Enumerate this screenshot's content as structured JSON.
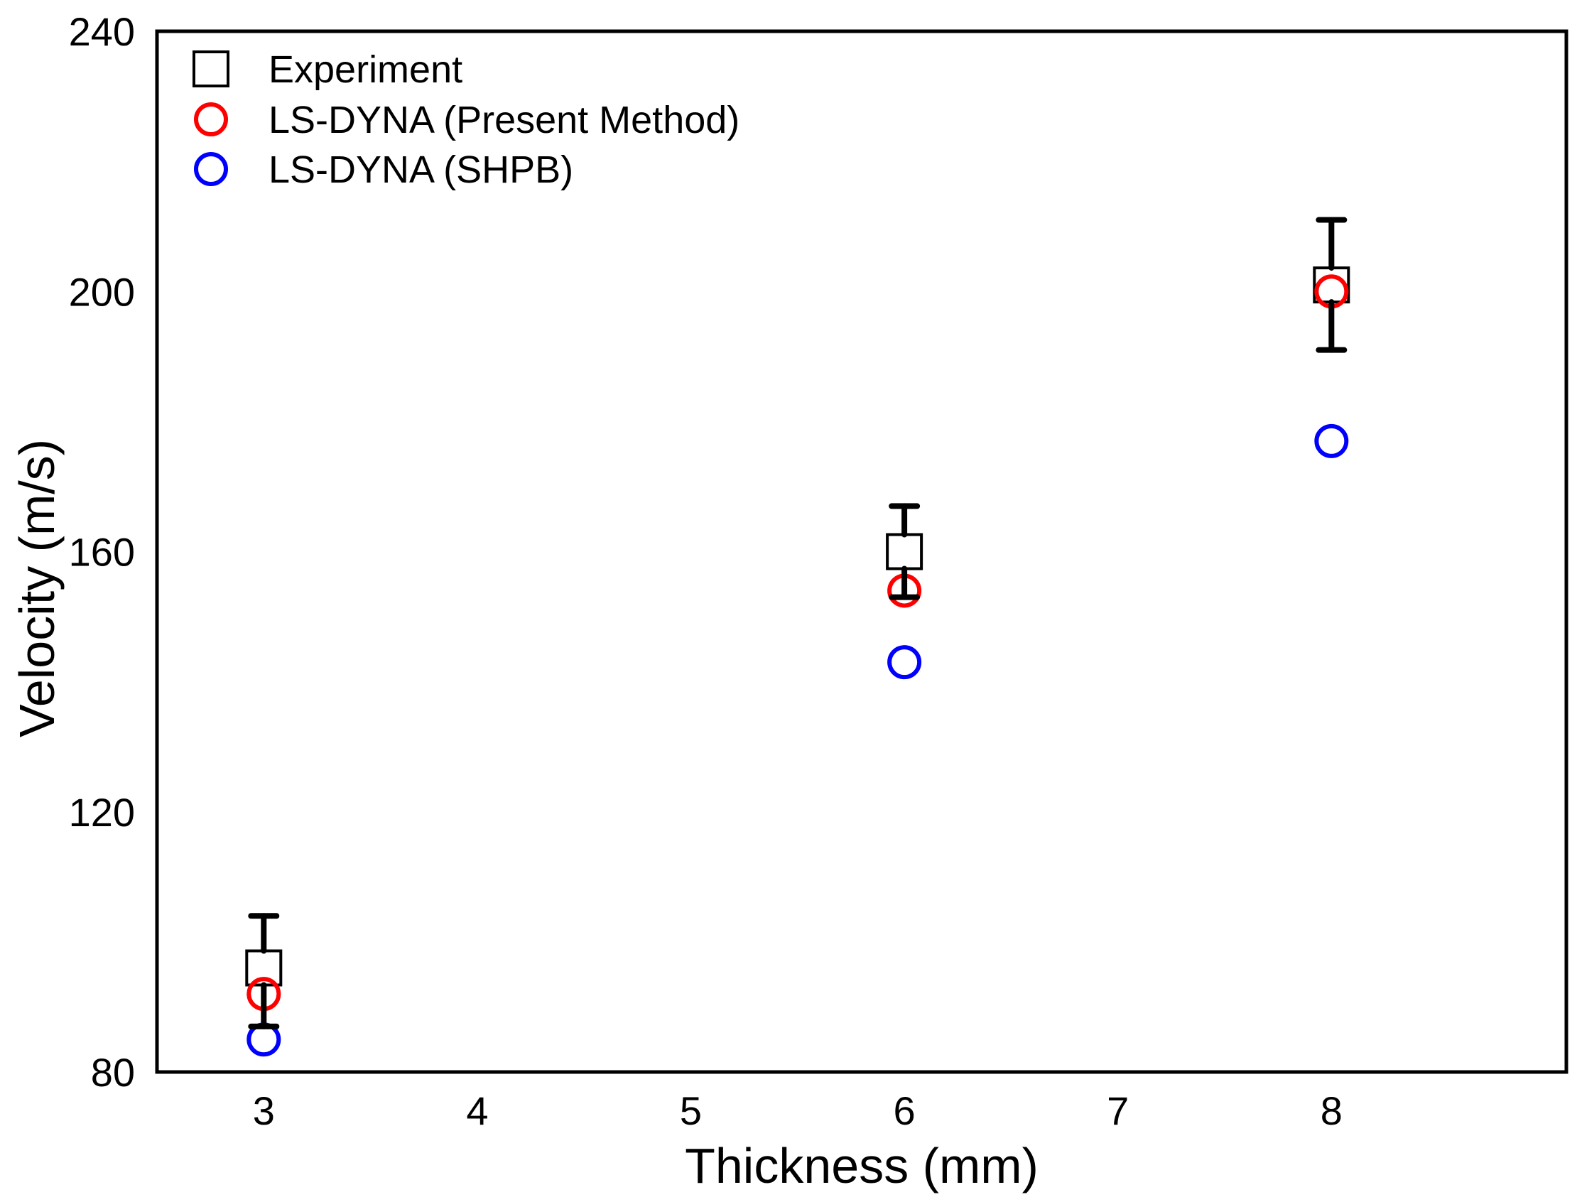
{
  "chart_data": {
    "type": "scatter",
    "title": "",
    "xlabel": "Thickness (mm)",
    "ylabel": "Velocity (m/s)",
    "xlim": [
      2.5,
      9.1
    ],
    "ylim": [
      80,
      240
    ],
    "xticks": [
      3,
      4,
      5,
      6,
      7,
      8
    ],
    "yticks": [
      80,
      120,
      160,
      200,
      240
    ],
    "grid": false,
    "legend_position": "top-left",
    "series": [
      {
        "name": "Experiment",
        "marker": "square",
        "color": "#000000",
        "points": [
          {
            "x": 3,
            "y": 96,
            "err_low": 87,
            "err_high": 104
          },
          {
            "x": 6,
            "y": 160,
            "err_low": 153,
            "err_high": 167
          },
          {
            "x": 8,
            "y": 201,
            "err_low": 191,
            "err_high": 211
          }
        ]
      },
      {
        "name": "LS-DYNA (Present Method)",
        "marker": "circle",
        "color": "#ff0000",
        "points": [
          {
            "x": 3,
            "y": 92
          },
          {
            "x": 6,
            "y": 154
          },
          {
            "x": 8,
            "y": 200
          }
        ]
      },
      {
        "name": "LS-DYNA (SHPB)",
        "marker": "circle",
        "color": "#0000ff",
        "points": [
          {
            "x": 3,
            "y": 85
          },
          {
            "x": 6,
            "y": 143
          },
          {
            "x": 8,
            "y": 177
          }
        ]
      }
    ]
  }
}
